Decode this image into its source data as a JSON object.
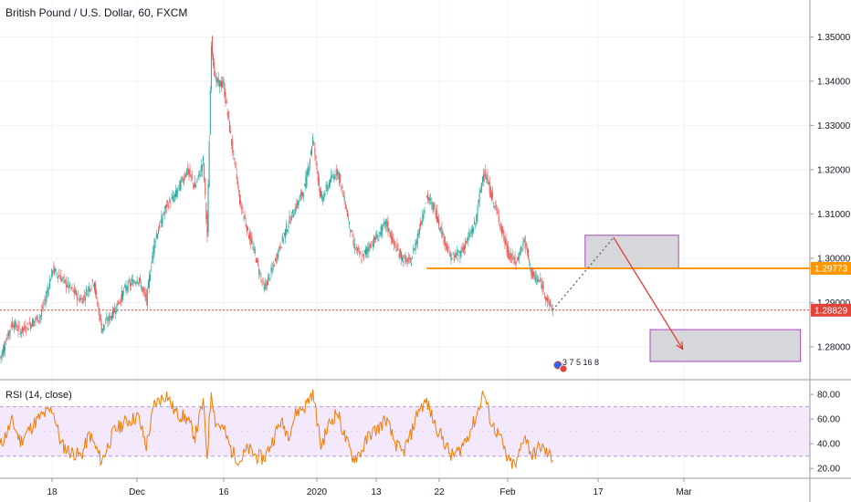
{
  "chart_data": [
    {
      "type": "candlestick",
      "title": "British Pound / U.S. Dollar, 60, FXCM",
      "ylim": [
        1.273,
        1.3575
      ],
      "y_ticks": [
        "1.35000",
        "1.34000",
        "1.33000",
        "1.32000",
        "1.31000",
        "1.30000",
        "1.29000",
        "1.28000"
      ],
      "y_tick_values": [
        1.35,
        1.34,
        1.33,
        1.32,
        1.31,
        1.3,
        1.29,
        1.28
      ],
      "x_ticks": [
        "18",
        "Dec",
        "16",
        "2020",
        "13",
        "22",
        "Feb",
        "17",
        "Mar"
      ],
      "grid": true,
      "price_path": [
        [
          0,
          1.2775
        ],
        [
          3,
          1.2855
        ],
        [
          5,
          1.2835
        ],
        [
          10,
          1.287
        ],
        [
          13,
          1.2975
        ],
        [
          17,
          1.2935
        ],
        [
          20,
          1.2905
        ],
        [
          23,
          1.295
        ],
        [
          25,
          1.284
        ],
        [
          28,
          1.288
        ],
        [
          31,
          1.2935
        ],
        [
          34,
          1.2955
        ],
        [
          36,
          1.2905
        ],
        [
          38,
          1.304
        ],
        [
          41,
          1.312
        ],
        [
          43,
          1.314
        ],
        [
          46,
          1.32
        ],
        [
          48,
          1.316
        ],
        [
          50,
          1.322
        ],
        [
          51,
          1.305
        ],
        [
          52,
          1.349
        ],
        [
          53,
          1.34
        ],
        [
          55,
          1.339
        ],
        [
          57,
          1.326
        ],
        [
          59,
          1.313
        ],
        [
          61,
          1.306
        ],
        [
          63,
          1.3
        ],
        [
          65,
          1.293
        ],
        [
          67,
          1.2975
        ],
        [
          69,
          1.303
        ],
        [
          71,
          1.308
        ],
        [
          73,
          1.312
        ],
        [
          75,
          1.316
        ],
        [
          77,
          1.327
        ],
        [
          79,
          1.313
        ],
        [
          81,
          1.317
        ],
        [
          83,
          1.32
        ],
        [
          85,
          1.312
        ],
        [
          87,
          1.303
        ],
        [
          89,
          1.3
        ],
        [
          91,
          1.303
        ],
        [
          93,
          1.305
        ],
        [
          95,
          1.308
        ],
        [
          97,
          1.303
        ],
        [
          99,
          1.3
        ],
        [
          101,
          1.299
        ],
        [
          103,
          1.306
        ],
        [
          105,
          1.314
        ],
        [
          107,
          1.311
        ],
        [
          109,
          1.305
        ],
        [
          111,
          1.3
        ],
        [
          113,
          1.301
        ],
        [
          115,
          1.304
        ],
        [
          117,
          1.308
        ],
        [
          119,
          1.32
        ],
        [
          121,
          1.314
        ],
        [
          123,
          1.308
        ],
        [
          125,
          1.301
        ],
        [
          127,
          1.299
        ],
        [
          129,
          1.304
        ],
        [
          131,
          1.296
        ],
        [
          133,
          1.2945
        ],
        [
          135,
          1.29
        ],
        [
          136,
          1.2883
        ]
      ],
      "reference_lines": [
        {
          "value": 1.29773,
          "label": "1.29773",
          "color": "#ff9800",
          "style": "solid"
        },
        {
          "value": 1.28829,
          "label": "1.28829",
          "color": "#e0443a",
          "style": "dotted"
        }
      ],
      "target_zones": [
        {
          "x0": 144,
          "x1": 167,
          "y0": 1.2977,
          "y1": 1.3052
        },
        {
          "x0": 160,
          "x1": 197,
          "y0": 1.2767,
          "y1": 1.2839
        }
      ],
      "projection_dotted": [
        [
          136,
          1.2883
        ],
        [
          151,
          1.3047
        ]
      ],
      "projection_arrow": [
        [
          151,
          1.3047
        ],
        [
          168,
          1.2795
        ]
      ],
      "events_label": "3 7 5 16 8"
    },
    {
      "type": "line",
      "title": "RSI (14, close)",
      "ylim": [
        15,
        86
      ],
      "y_ticks": [
        "80.00",
        "60.00",
        "40.00",
        "20.00"
      ],
      "y_tick_values": [
        80,
        60,
        40,
        20
      ],
      "band": [
        30,
        70
      ],
      "rsi_path": [
        [
          0,
          38
        ],
        [
          3,
          58
        ],
        [
          5,
          42
        ],
        [
          8,
          55
        ],
        [
          10,
          62
        ],
        [
          13,
          68
        ],
        [
          15,
          40
        ],
        [
          17,
          34
        ],
        [
          20,
          30
        ],
        [
          22,
          48
        ],
        [
          25,
          26
        ],
        [
          28,
          50
        ],
        [
          31,
          58
        ],
        [
          34,
          62
        ],
        [
          36,
          38
        ],
        [
          38,
          72
        ],
        [
          41,
          80
        ],
        [
          43,
          66
        ],
        [
          46,
          60
        ],
        [
          48,
          46
        ],
        [
          50,
          74
        ],
        [
          51,
          30
        ],
        [
          52,
          84
        ],
        [
          53,
          58
        ],
        [
          55,
          52
        ],
        [
          57,
          34
        ],
        [
          59,
          26
        ],
        [
          61,
          36
        ],
        [
          63,
          30
        ],
        [
          65,
          28
        ],
        [
          67,
          42
        ],
        [
          69,
          58
        ],
        [
          71,
          48
        ],
        [
          73,
          66
        ],
        [
          75,
          70
        ],
        [
          77,
          82
        ],
        [
          79,
          38
        ],
        [
          81,
          56
        ],
        [
          83,
          66
        ],
        [
          85,
          44
        ],
        [
          87,
          28
        ],
        [
          89,
          34
        ],
        [
          91,
          48
        ],
        [
          93,
          52
        ],
        [
          95,
          60
        ],
        [
          97,
          42
        ],
        [
          99,
          32
        ],
        [
          101,
          46
        ],
        [
          103,
          68
        ],
        [
          105,
          74
        ],
        [
          107,
          56
        ],
        [
          109,
          44
        ],
        [
          111,
          30
        ],
        [
          113,
          34
        ],
        [
          115,
          46
        ],
        [
          117,
          60
        ],
        [
          119,
          82
        ],
        [
          121,
          56
        ],
        [
          123,
          46
        ],
        [
          125,
          26
        ],
        [
          127,
          22
        ],
        [
          129,
          48
        ],
        [
          131,
          30
        ],
        [
          133,
          38
        ],
        [
          135,
          31
        ],
        [
          136,
          29
        ]
      ]
    }
  ]
}
